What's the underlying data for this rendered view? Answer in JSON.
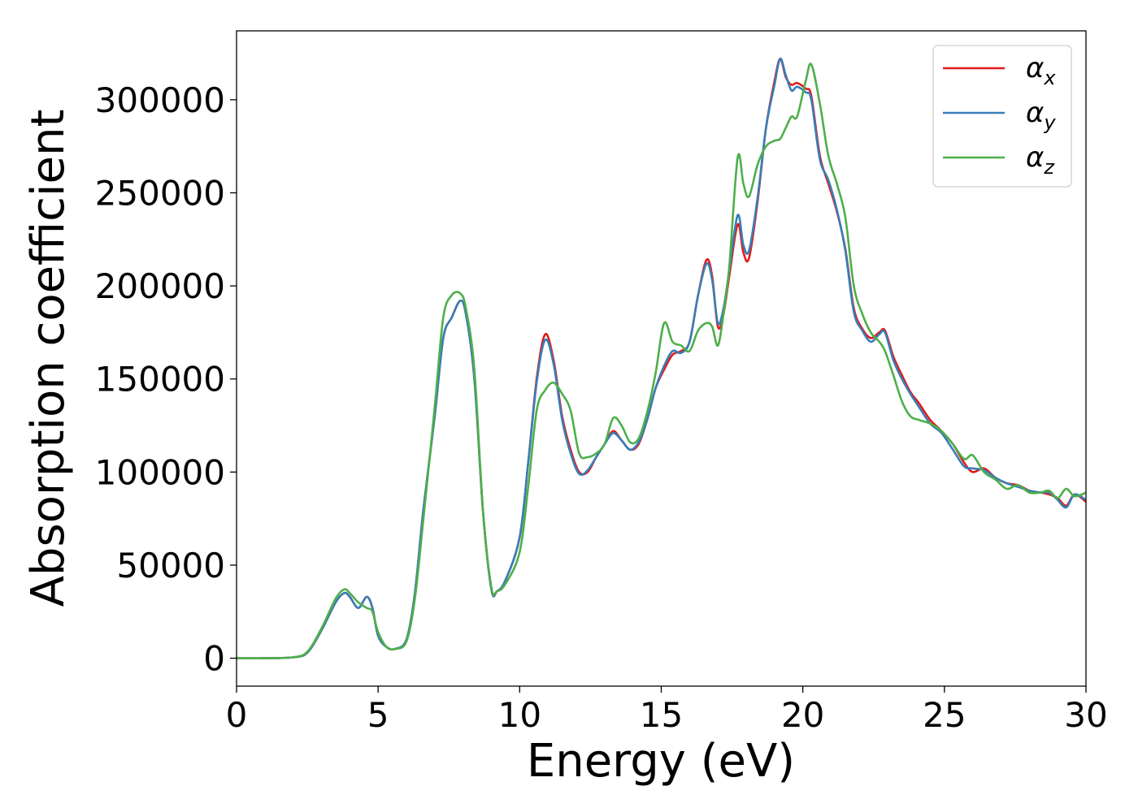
{
  "chart_data": {
    "type": "line",
    "title": "",
    "xlabel": "Energy (eV)",
    "ylabel": "Absorption coefficient",
    "xlim": [
      0,
      30
    ],
    "ylim": [
      -15000,
      337000
    ],
    "xticks": [
      0,
      5,
      10,
      15,
      20,
      25,
      30
    ],
    "xtick_labels": [
      "0",
      "5",
      "10",
      "15",
      "20",
      "25",
      "30"
    ],
    "yticks": [
      0,
      50000,
      100000,
      150000,
      200000,
      250000,
      300000
    ],
    "ytick_labels": [
      "0",
      "50000",
      "100000",
      "150000",
      "200000",
      "250000",
      "300000"
    ],
    "grid": false,
    "legend_position": "top-right",
    "series": [
      {
        "name": "α",
        "subscript": "x",
        "color": "#e41a1c",
        "x": [
          0,
          1,
          2,
          2.5,
          3,
          3.5,
          3.8,
          4.0,
          4.3,
          4.6,
          4.8,
          5.0,
          5.3,
          5.6,
          6.0,
          6.3,
          6.6,
          7.0,
          7.3,
          7.6,
          7.9,
          8.1,
          8.4,
          8.7,
          9.0,
          9.2,
          9.5,
          10.0,
          10.3,
          10.6,
          10.9,
          11.2,
          11.5,
          11.8,
          12.1,
          12.4,
          12.7,
          13.0,
          13.3,
          13.6,
          13.9,
          14.2,
          14.5,
          14.8,
          15.1,
          15.4,
          15.7,
          16.0,
          16.3,
          16.6,
          16.8,
          17.0,
          17.2,
          17.4,
          17.7,
          17.9,
          18.1,
          18.4,
          18.7,
          19.0,
          19.2,
          19.4,
          19.6,
          19.8,
          20.1,
          20.3,
          20.6,
          20.9,
          21.2,
          21.5,
          21.8,
          22.1,
          22.4,
          22.7,
          22.9,
          23.2,
          23.5,
          23.8,
          24.1,
          24.5,
          24.9,
          25.3,
          25.7,
          26.0,
          26.4,
          26.8,
          27.2,
          27.6,
          28.0,
          28.4,
          28.7,
          29.0,
          29.3,
          29.6,
          30
        ],
        "y": [
          0,
          0,
          500,
          3000,
          15000,
          30000,
          35000,
          33000,
          27000,
          33000,
          27000,
          12000,
          6000,
          5000,
          10000,
          35000,
          80000,
          130000,
          172000,
          183000,
          192000,
          185000,
          150000,
          80000,
          37000,
          36000,
          42000,
          65000,
          105000,
          150000,
          174000,
          160000,
          130000,
          112000,
          100000,
          100000,
          108000,
          115000,
          122000,
          117000,
          112000,
          115000,
          128000,
          145000,
          155000,
          163000,
          165000,
          170000,
          195000,
          214000,
          205000,
          178000,
          185000,
          205000,
          233000,
          218000,
          215000,
          245000,
          285000,
          310000,
          322000,
          312000,
          308000,
          309000,
          306000,
          302000,
          270000,
          255000,
          240000,
          220000,
          188000,
          177000,
          172000,
          175000,
          176000,
          162000,
          152000,
          143000,
          137000,
          128000,
          122000,
          115000,
          105000,
          100000,
          102000,
          97000,
          94000,
          93000,
          90000,
          89000,
          88000,
          86000,
          82000,
          88000,
          84000
        ]
      },
      {
        "name": "α",
        "subscript": "y",
        "color": "#377eb8",
        "x": [
          0,
          1,
          2,
          2.5,
          3,
          3.5,
          3.8,
          4.0,
          4.3,
          4.6,
          4.8,
          5.0,
          5.3,
          5.6,
          6.0,
          6.3,
          6.6,
          7.0,
          7.3,
          7.6,
          7.9,
          8.1,
          8.4,
          8.7,
          9.0,
          9.2,
          9.5,
          10.0,
          10.3,
          10.6,
          10.9,
          11.2,
          11.5,
          11.8,
          12.1,
          12.4,
          12.7,
          13.0,
          13.3,
          13.6,
          13.9,
          14.2,
          14.5,
          14.8,
          15.1,
          15.4,
          15.7,
          16.0,
          16.3,
          16.6,
          16.8,
          17.0,
          17.2,
          17.4,
          17.7,
          17.9,
          18.1,
          18.4,
          18.7,
          19.0,
          19.2,
          19.4,
          19.6,
          19.8,
          20.1,
          20.3,
          20.6,
          20.9,
          21.2,
          21.5,
          21.8,
          22.1,
          22.4,
          22.7,
          22.9,
          23.2,
          23.5,
          23.8,
          24.1,
          24.5,
          24.9,
          25.3,
          25.7,
          26.0,
          26.4,
          26.8,
          27.2,
          27.6,
          28.0,
          28.4,
          28.7,
          29.0,
          29.3,
          29.6,
          30
        ],
        "y": [
          0,
          0,
          500,
          3000,
          15000,
          30000,
          35000,
          33000,
          27000,
          33000,
          27000,
          12000,
          6000,
          5000,
          10000,
          35000,
          80000,
          130000,
          172000,
          183000,
          192000,
          185000,
          150000,
          80000,
          37000,
          36000,
          42000,
          65000,
          105000,
          148000,
          171000,
          158000,
          128000,
          110000,
          99000,
          101000,
          108000,
          115000,
          121000,
          117000,
          112000,
          116000,
          128000,
          145000,
          157000,
          165000,
          164000,
          170000,
          195000,
          212000,
          203000,
          180000,
          188000,
          208000,
          238000,
          222000,
          219000,
          247000,
          285000,
          308000,
          322000,
          313000,
          305000,
          307000,
          304000,
          300000,
          268000,
          257000,
          241000,
          219000,
          186000,
          176000,
          170000,
          174000,
          175000,
          160000,
          150000,
          142000,
          135000,
          126000,
          121000,
          112000,
          103000,
          102000,
          101000,
          97000,
          94000,
          92000,
          90000,
          89000,
          89000,
          85000,
          81000,
          88000,
          85000
        ]
      },
      {
        "name": "α",
        "subscript": "z",
        "color": "#4daf4a",
        "x": [
          0,
          1,
          2,
          2.5,
          3,
          3.5,
          3.8,
          4.0,
          4.3,
          4.6,
          4.8,
          5.0,
          5.3,
          5.6,
          6.0,
          6.3,
          6.6,
          7.0,
          7.3,
          7.6,
          7.9,
          8.1,
          8.4,
          8.7,
          9.0,
          9.2,
          9.5,
          10.0,
          10.3,
          10.6,
          10.9,
          11.2,
          11.5,
          11.8,
          12.1,
          12.4,
          12.7,
          13.0,
          13.3,
          13.6,
          13.9,
          14.2,
          14.5,
          14.8,
          15.1,
          15.4,
          15.7,
          16.0,
          16.3,
          16.6,
          16.8,
          17.0,
          17.2,
          17.4,
          17.7,
          17.9,
          18.1,
          18.4,
          18.7,
          19.0,
          19.2,
          19.4,
          19.6,
          19.8,
          20.1,
          20.3,
          20.6,
          20.9,
          21.2,
          21.5,
          21.8,
          22.1,
          22.4,
          22.7,
          22.9,
          23.2,
          23.5,
          23.8,
          24.1,
          24.5,
          24.9,
          25.3,
          25.7,
          26.0,
          26.4,
          26.8,
          27.2,
          27.6,
          28.0,
          28.4,
          28.7,
          29.0,
          29.3,
          29.6,
          30
        ],
        "y": [
          0,
          0,
          500,
          3500,
          16000,
          32000,
          37000,
          35000,
          30000,
          27000,
          25000,
          14000,
          6000,
          5000,
          9000,
          32000,
          75000,
          135000,
          183000,
          195000,
          196000,
          188000,
          155000,
          80000,
          38000,
          36000,
          40000,
          57000,
          92000,
          133000,
          144000,
          148000,
          142000,
          133000,
          110000,
          108000,
          110000,
          115000,
          129000,
          125000,
          116000,
          118000,
          132000,
          153000,
          180000,
          170000,
          168000,
          165000,
          176000,
          180000,
          178000,
          168000,
          185000,
          210000,
          269000,
          255000,
          248000,
          265000,
          275000,
          278000,
          279000,
          285000,
          291000,
          291000,
          310000,
          319000,
          298000,
          270000,
          255000,
          237000,
          200000,
          185000,
          175000,
          170000,
          165000,
          152000,
          138000,
          130000,
          128000,
          126000,
          122000,
          115000,
          107000,
          109000,
          100000,
          96000,
          91000,
          93000,
          89000,
          89000,
          90000,
          86000,
          91000,
          87000,
          89000
        ]
      }
    ]
  }
}
